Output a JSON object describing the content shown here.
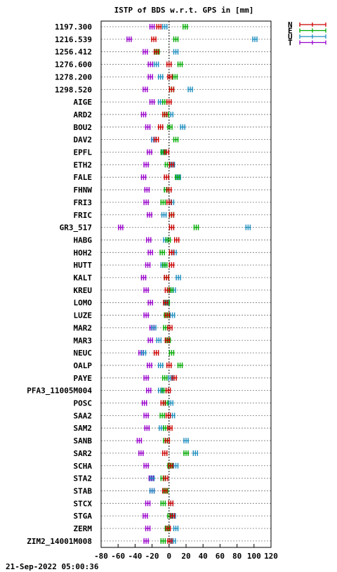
{
  "chart_data": {
    "type": "scatter",
    "title": "ISTP of BDS w.r.t. GPS in [mm]",
    "xlim": [
      -80,
      120
    ],
    "xticks": [
      -80,
      -60,
      -40,
      -20,
      0,
      20,
      40,
      60,
      80,
      100,
      120
    ],
    "xtick_labels": [
      "-80",
      "-60",
      "-40",
      "-20",
      "0",
      "20",
      "40",
      "60",
      "80",
      "100",
      "120"
    ],
    "grid": true,
    "legend_position": "top-right",
    "colors": {
      "N": "#cc0000",
      "E": "#00aa00",
      "U": "#1f8fbf",
      "T": "#9900cc"
    },
    "categories": [
      "1197.300",
      "1216.539",
      "1256.412",
      "1276.600",
      "1278.200",
      "1298.520",
      "AIGE",
      "ARD2",
      "BOU2",
      "DAV2",
      "EPFL",
      "ETH2",
      "FALE",
      "FHNW",
      "FRI3",
      "FRIC",
      "GR3_517",
      "HABG",
      "HOH2",
      "HUTT",
      "KALT",
      "KREU",
      "LOMO",
      "LUZE",
      "MAR2",
      "MAR3",
      "NEUC",
      "OALP",
      "PAYE",
      "PFA3_11005M004",
      "POSC",
      "SAA2",
      "SAM2",
      "SANB",
      "SAR2",
      "SCHA",
      "STA2",
      "STAB",
      "STCX",
      "STGA",
      "ZERM",
      "ZIM2_14001M008"
    ],
    "series": [
      {
        "name": "N",
        "color": "#cc0000",
        "values": [
          -12,
          -18,
          -15,
          0,
          1,
          3,
          0,
          -5,
          -10,
          -15,
          -3,
          3,
          -3,
          0,
          0,
          3,
          3,
          9,
          3,
          3,
          -3,
          -2,
          -4,
          -2,
          1,
          -2,
          -15,
          0,
          6,
          -1,
          -7,
          -1,
          1,
          -2,
          -5,
          2,
          -4,
          -5,
          2,
          4,
          -1,
          1
        ]
      },
      {
        "name": "E",
        "color": "#00aa00",
        "values": [
          19,
          8,
          -14,
          13,
          7,
          3,
          -5,
          -3,
          1,
          8,
          -7,
          -2,
          10,
          -3,
          -7,
          3,
          32,
          -1,
          -8,
          -5,
          -3,
          2,
          -2,
          -3,
          -4,
          -1,
          3,
          13,
          -5,
          -6,
          -4,
          -8,
          -4,
          -4,
          20,
          1,
          -7,
          -4,
          -7,
          1,
          -2,
          -7
        ]
      },
      {
        "name": "U",
        "color": "#1f8fbf",
        "values": [
          -5,
          101,
          8,
          -15,
          -10,
          25,
          -10,
          2,
          16,
          -18,
          -6,
          4,
          11,
          -3,
          3,
          -6,
          93,
          -4,
          6,
          -7,
          11,
          5,
          -3,
          4,
          -18,
          -12,
          -30,
          -10,
          2,
          -10,
          2,
          4,
          -9,
          20,
          31,
          8,
          -20,
          -20,
          2,
          5,
          8,
          5
        ]
      },
      {
        "name": "T",
        "color": "#9900cc",
        "values": [
          -20,
          -47,
          -28,
          -22,
          -22,
          -28,
          -20,
          -30,
          -25,
          -18,
          -23,
          -27,
          -30,
          -26,
          -27,
          -23,
          -57,
          -24,
          -22,
          -25,
          -30,
          -27,
          -22,
          -27,
          -20,
          -22,
          -33,
          -23,
          -27,
          -24,
          -29,
          -27,
          -26,
          -35,
          -33,
          -27,
          -21,
          -20,
          -25,
          -28,
          -25,
          -27
        ]
      }
    ]
  },
  "footer": {
    "timestamp": "21-Sep-2022 05:00:36"
  }
}
